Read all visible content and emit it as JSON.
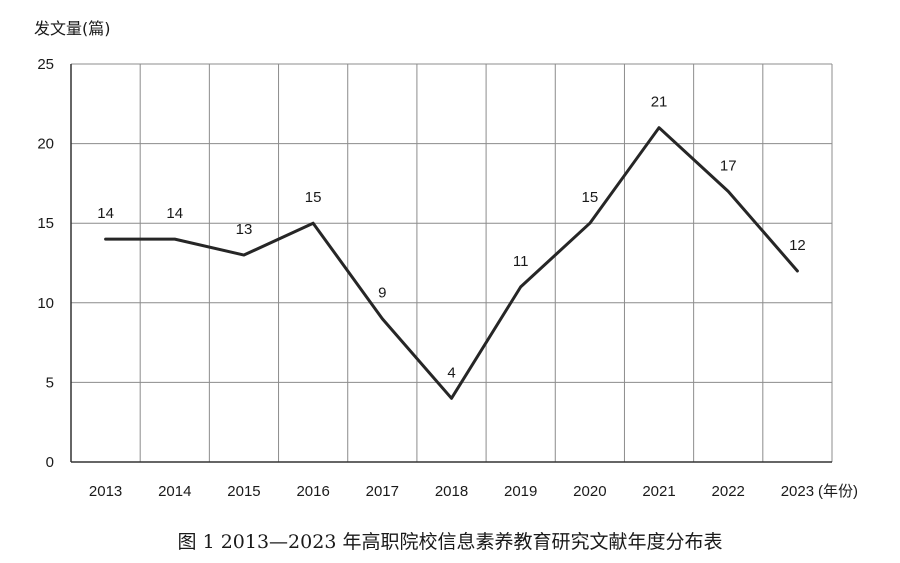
{
  "chart_data": {
    "type": "line",
    "ylabel": "发文量(篇)",
    "xlabel": "(年份)",
    "caption": "图 1   2013—2023 年高职院校信息素养教育研究文献年度分布表",
    "x": [
      "2013",
      "2014",
      "2015",
      "2016",
      "2017",
      "2018",
      "2019",
      "2020",
      "2021",
      "2022",
      "2023"
    ],
    "y_ticks": [
      "0",
      "5",
      "10",
      "15",
      "20",
      "25"
    ],
    "values": [
      14,
      14,
      13,
      15,
      9,
      4,
      11,
      15,
      21,
      17,
      12
    ],
    "data_labels": [
      "14",
      "14",
      "13",
      "15",
      "9",
      "4",
      "11",
      "15",
      "21",
      "17",
      "12"
    ],
    "ylim": [
      0,
      25
    ],
    "y_step": 5,
    "grid": true,
    "line_color": "#262626",
    "grid_color": "#8c8c8c"
  }
}
